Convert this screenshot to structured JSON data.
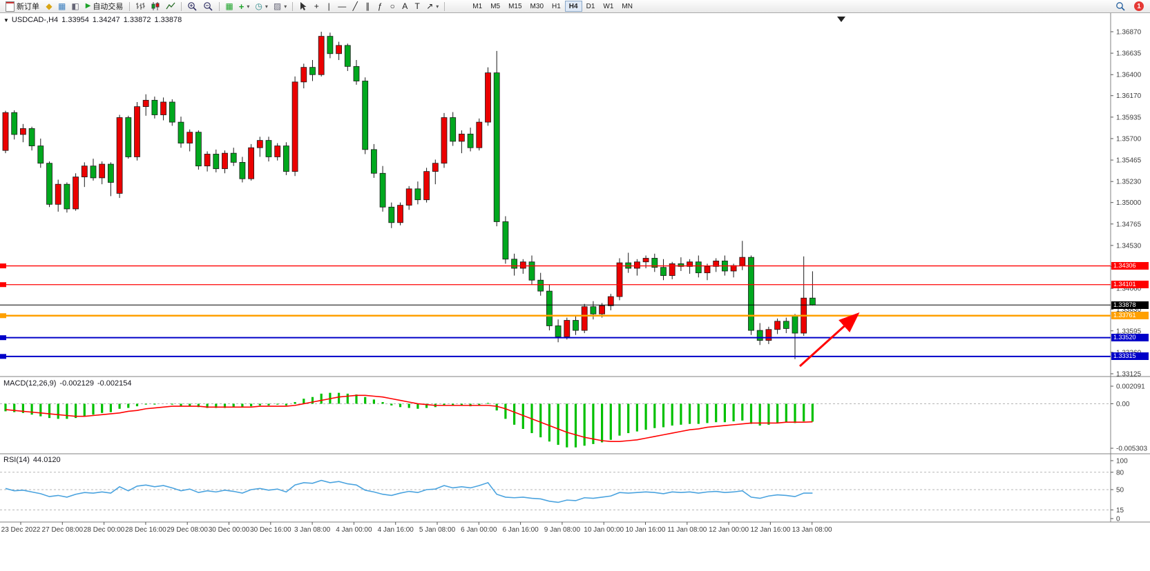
{
  "toolbar": {
    "new_order_label": "新订单",
    "auto_trading_label": "自动交易",
    "timeframes": [
      "M1",
      "M5",
      "M15",
      "M30",
      "H1",
      "H4",
      "D1",
      "W1",
      "MN"
    ],
    "active_timeframe": "H4",
    "notification_badge": "1"
  },
  "icons": {
    "collapse": "▼",
    "metaeditor": "◆",
    "terminal": "▦",
    "tester": "◧",
    "play": "▶",
    "tile": "▦",
    "indicators": "+",
    "periods": "◷",
    "templates": "▨",
    "crosshair": "+",
    "vertical_line": "|",
    "horizontal_line": "—",
    "trendline": "╱",
    "channel": "∥",
    "fibonacci": "ƒ",
    "ellipse": "○",
    "text": "A",
    "label": "T",
    "arrows": "↗",
    "dropdown": "▾"
  },
  "chart": {
    "symbol_period": "USDCAD-,H4",
    "open": "1.33954",
    "high": "1.34247",
    "low": "1.33872",
    "close": "1.33878"
  },
  "price_axis": {
    "top_price": 1.3687,
    "bottom_price": 1.33125,
    "labels": [
      "1.36870",
      "1.36635",
      "1.36400",
      "1.36170",
      "1.35935",
      "1.35700",
      "1.35465",
      "1.35230",
      "1.35000",
      "1.34765",
      "1.34530",
      "1.34300",
      "1.34060",
      "1.33830",
      "1.33595",
      "1.33360",
      "1.33125"
    ]
  },
  "line_levels": [
    {
      "name": "resistance-line-1",
      "price": "1.34306",
      "value": 1.34306,
      "color": "#FF0000",
      "width": 1.3,
      "anchor": true
    },
    {
      "name": "resistance-line-2",
      "price": "1.34101",
      "value": 1.34101,
      "color": "#FF0000",
      "width": 1.3,
      "anchor": true
    },
    {
      "name": "bid-price-line",
      "price": "1.33878",
      "value": 1.33878,
      "color": "#000000",
      "width": 1,
      "anchor": false
    },
    {
      "name": "orange-level-line",
      "price": "1.33761",
      "value": 1.33761,
      "color": "#FFA000",
      "width": 2.5,
      "anchor": true
    },
    {
      "name": "support-line-1",
      "price": "1.33520",
      "value": 1.3352,
      "color": "#0000C8",
      "width": 2,
      "anchor": true
    },
    {
      "name": "support-line-2",
      "price": "1.33315",
      "value": 1.33315,
      "color": "#0000C8",
      "width": 2,
      "anchor": true
    }
  ],
  "macd": {
    "label": "MACD(12,26,9)",
    "value": "-0.002129",
    "signal_value": "-0.002154",
    "axis_labels": [
      "0.002091",
      "0.00",
      "-0.005303"
    ],
    "axis_values": [
      0.002091,
      0,
      -0.005303
    ],
    "histogram_color": "#00C000",
    "signal_color": "#FF0000"
  },
  "rsi": {
    "label": "RSI(14)",
    "value": "44.0120",
    "axis_labels": [
      "100",
      "80",
      "50",
      "15",
      "0"
    ],
    "axis_values": [
      100,
      80,
      50,
      15,
      0
    ],
    "levels": [
      80,
      50,
      15
    ],
    "line_color": "#4AA3DF"
  },
  "time_axis": {
    "labels": [
      "23 Dec 2022",
      "27 Dec 08:00",
      "28 Dec 00:00",
      "28 Dec 16:00",
      "29 Dec 08:00",
      "30 Dec 00:00",
      "30 Dec 16:00",
      "3 Jan 08:00",
      "4 Jan 00:00",
      "4 Jan 16:00",
      "5 Jan 08:00",
      "6 Jan 00:00",
      "6 Jan 16:00",
      "9 Jan 08:00",
      "10 Jan 00:00",
      "10 Jan 16:00",
      "11 Jan 08:00",
      "12 Jan 00:00",
      "12 Jan 16:00",
      "13 Jan 08:00"
    ]
  },
  "annotation": {
    "arrow_color": "#FF0000"
  },
  "chart_data": {
    "type": "candlestick",
    "title": "USDCAD-,H4",
    "symbol": "USDCAD",
    "period": "H4",
    "bull_color": "#EB0000",
    "bear_color": "#00A81E",
    "ylim": [
      1.33125,
      1.3687
    ],
    "candles": [
      [
        1.3557,
        1.36005,
        1.3554,
        1.35985
      ],
      [
        1.35985,
        1.3601,
        1.3569,
        1.35745
      ],
      [
        1.35745,
        1.3586,
        1.3566,
        1.3581
      ],
      [
        1.3581,
        1.3583,
        1.3557,
        1.3562
      ],
      [
        1.3562,
        1.357,
        1.3538,
        1.3543
      ],
      [
        1.3543,
        1.3545,
        1.3495,
        1.3498
      ],
      [
        1.3498,
        1.3525,
        1.349,
        1.352
      ],
      [
        1.352,
        1.3522,
        1.3489,
        1.3493
      ],
      [
        1.3493,
        1.3532,
        1.3491,
        1.3528
      ],
      [
        1.3528,
        1.3544,
        1.3517,
        1.354
      ],
      [
        1.354,
        1.3548,
        1.3524,
        1.3527
      ],
      [
        1.3527,
        1.3545,
        1.352,
        1.3542
      ],
      [
        1.3542,
        1.3544,
        1.3507,
        1.3522
      ],
      [
        1.351,
        1.3596,
        1.3505,
        1.3593
      ],
      [
        1.3593,
        1.3595,
        1.3548,
        1.355
      ],
      [
        1.355,
        1.361,
        1.3546,
        1.3605
      ],
      [
        1.3605,
        1.36185,
        1.3595,
        1.3612
      ],
      [
        1.3612,
        1.3616,
        1.3592,
        1.3596
      ],
      [
        1.3596,
        1.3615,
        1.359,
        1.361
      ],
      [
        1.361,
        1.3613,
        1.3584,
        1.3588
      ],
      [
        1.3588,
        1.3594,
        1.356,
        1.3565
      ],
      [
        1.3565,
        1.358,
        1.3556,
        1.3577
      ],
      [
        1.3577,
        1.3579,
        1.3536,
        1.354
      ],
      [
        1.354,
        1.3556,
        1.3534,
        1.3553
      ],
      [
        1.3553,
        1.3558,
        1.3533,
        1.3537
      ],
      [
        1.3537,
        1.3557,
        1.3532,
        1.3554
      ],
      [
        1.3554,
        1.356,
        1.354,
        1.3544
      ],
      [
        1.3544,
        1.355,
        1.3522,
        1.3526
      ],
      [
        1.3526,
        1.3564,
        1.3524,
        1.356
      ],
      [
        1.356,
        1.3572,
        1.355,
        1.3568
      ],
      [
        1.3568,
        1.3572,
        1.3545,
        1.355
      ],
      [
        1.355,
        1.3565,
        1.3546,
        1.3562
      ],
      [
        1.3562,
        1.3566,
        1.353,
        1.3534
      ],
      [
        1.3534,
        1.3638,
        1.3529,
        1.3632
      ],
      [
        1.3632,
        1.3652,
        1.3625,
        1.3648
      ],
      [
        1.3648,
        1.3656,
        1.3633,
        1.364
      ],
      [
        1.364,
        1.3687,
        1.3638,
        1.3682
      ],
      [
        1.3682,
        1.3686,
        1.3658,
        1.3663
      ],
      [
        1.3663,
        1.3676,
        1.3656,
        1.3672
      ],
      [
        1.3672,
        1.3674,
        1.3644,
        1.3649
      ],
      [
        1.3649,
        1.3656,
        1.3629,
        1.3633
      ],
      [
        1.3633,
        1.3637,
        1.3553,
        1.3558
      ],
      [
        1.3558,
        1.3564,
        1.3527,
        1.3532
      ],
      [
        1.3532,
        1.354,
        1.349,
        1.3495
      ],
      [
        1.3495,
        1.35,
        1.3472,
        1.3478
      ],
      [
        1.3478,
        1.35,
        1.3475,
        1.3497
      ],
      [
        1.3497,
        1.3518,
        1.3492,
        1.3515
      ],
      [
        1.3515,
        1.3523,
        1.3498,
        1.3503
      ],
      [
        1.3503,
        1.3538,
        1.35,
        1.3534
      ],
      [
        1.3534,
        1.3547,
        1.352,
        1.3543
      ],
      [
        1.3543,
        1.3598,
        1.3538,
        1.3593
      ],
      [
        1.3593,
        1.3599,
        1.3562,
        1.3567
      ],
      [
        1.3567,
        1.3579,
        1.3554,
        1.3575
      ],
      [
        1.3575,
        1.3582,
        1.3556,
        1.356
      ],
      [
        1.356,
        1.3592,
        1.3557,
        1.3588
      ],
      [
        1.3588,
        1.3648,
        1.3584,
        1.3642
      ],
      [
        1.3642,
        1.3666,
        1.3474,
        1.3479
      ],
      [
        1.3479,
        1.3485,
        1.3433,
        1.3438
      ],
      [
        1.3438,
        1.3444,
        1.342,
        1.3428
      ],
      [
        1.3428,
        1.3438,
        1.3422,
        1.3435
      ],
      [
        1.3435,
        1.3442,
        1.341,
        1.3415
      ],
      [
        1.3415,
        1.3423,
        1.3398,
        1.3403
      ],
      [
        1.3403,
        1.341,
        1.336,
        1.3365
      ],
      [
        1.3365,
        1.3372,
        1.3347,
        1.3353
      ],
      [
        1.3353,
        1.3374,
        1.335,
        1.3371
      ],
      [
        1.3371,
        1.3377,
        1.3355,
        1.336
      ],
      [
        1.336,
        1.3389,
        1.3357,
        1.3386
      ],
      [
        1.3386,
        1.3392,
        1.3372,
        1.3378
      ],
      [
        1.3378,
        1.339,
        1.3374,
        1.3387
      ],
      [
        1.3387,
        1.34,
        1.3382,
        1.3397
      ],
      [
        1.3397,
        1.3439,
        1.3393,
        1.3434
      ],
      [
        1.3434,
        1.3445,
        1.3423,
        1.3428
      ],
      [
        1.3428,
        1.3438,
        1.342,
        1.3435
      ],
      [
        1.3435,
        1.3442,
        1.3428,
        1.3439
      ],
      [
        1.3439,
        1.3444,
        1.3424,
        1.3429
      ],
      [
        1.3429,
        1.3438,
        1.3415,
        1.342
      ],
      [
        1.342,
        1.3435,
        1.3416,
        1.3433
      ],
      [
        1.3433,
        1.344,
        1.3425,
        1.343
      ],
      [
        1.343,
        1.3438,
        1.3422,
        1.3435
      ],
      [
        1.3435,
        1.3442,
        1.3418,
        1.3423
      ],
      [
        1.3423,
        1.3433,
        1.3415,
        1.343
      ],
      [
        1.343,
        1.3439,
        1.3424,
        1.3436
      ],
      [
        1.3436,
        1.3442,
        1.342,
        1.3425
      ],
      [
        1.3425,
        1.3433,
        1.3418,
        1.3431
      ],
      [
        1.3431,
        1.3458,
        1.3426,
        1.344
      ],
      [
        1.344,
        1.3442,
        1.3355,
        1.336
      ],
      [
        1.336,
        1.3368,
        1.3344,
        1.3349
      ],
      [
        1.3349,
        1.3364,
        1.3345,
        1.3361
      ],
      [
        1.3361,
        1.3373,
        1.3356,
        1.337
      ],
      [
        1.337,
        1.3374,
        1.3357,
        1.3362
      ],
      [
        1.3376,
        1.3378,
        1.33285,
        1.3357
      ],
      [
        1.3357,
        1.3441,
        1.3354,
        1.33954
      ],
      [
        1.33954,
        1.34247,
        1.33872,
        1.33878
      ]
    ],
    "macd_histogram": [
      -0.0009,
      -0.001,
      -0.0011,
      -0.0013,
      -0.0015,
      -0.0017,
      -0.0018,
      -0.0018,
      -0.0017,
      -0.0015,
      -0.0013,
      -0.0011,
      -0.001,
      -0.0006,
      -0.0005,
      -0.0003,
      -0.0001,
      -0.0001,
      0.0,
      -0.0001,
      -0.0003,
      -0.0003,
      -0.0004,
      -0.0005,
      -0.0005,
      -0.0005,
      -0.0004,
      -0.0004,
      -0.0003,
      -0.0002,
      -0.0002,
      -0.0001,
      -0.0002,
      0.0002,
      0.0006,
      0.0008,
      0.0012,
      0.0013,
      0.0013,
      0.0012,
      0.0011,
      0.0008,
      0.0005,
      0.0002,
      -0.0002,
      -0.0004,
      -0.0005,
      -0.0006,
      -0.0005,
      -0.0004,
      -0.0002,
      -0.0002,
      -0.0002,
      -0.0003,
      -0.0002,
      0.0001,
      -0.0008,
      -0.0018,
      -0.0025,
      -0.003,
      -0.0035,
      -0.004,
      -0.0045,
      -0.0049,
      -0.0052,
      -0.0052,
      -0.005,
      -0.0048,
      -0.0046,
      -0.0043,
      -0.0038,
      -0.0035,
      -0.0033,
      -0.0031,
      -0.0029,
      -0.0028,
      -0.0026,
      -0.0025,
      -0.0024,
      -0.0024,
      -0.0023,
      -0.0022,
      -0.0022,
      -0.0021,
      -0.002,
      -0.0024,
      -0.0026,
      -0.0025,
      -0.0023,
      -0.0022,
      -0.0023,
      -0.0021,
      -0.002129
    ],
    "macd_signal": [
      -0.0007,
      -0.0008,
      -0.0009,
      -0.001,
      -0.0011,
      -0.0012,
      -0.0013,
      -0.0014,
      -0.0015,
      -0.0015,
      -0.0014,
      -0.0013,
      -0.0012,
      -0.0011,
      -0.0009,
      -0.0008,
      -0.0006,
      -0.0005,
      -0.0004,
      -0.0003,
      -0.0003,
      -0.0003,
      -0.0003,
      -0.0004,
      -0.0004,
      -0.0004,
      -0.0004,
      -0.0004,
      -0.0004,
      -0.0003,
      -0.0003,
      -0.0003,
      -0.0003,
      -0.0002,
      0.0,
      0.0002,
      0.0004,
      0.0006,
      0.0008,
      0.0009,
      0.001,
      0.001,
      0.0009,
      0.0008,
      0.0006,
      0.0004,
      0.0002,
      0.0,
      -0.0001,
      -0.0002,
      -0.0002,
      -0.0002,
      -0.0002,
      -0.0002,
      -0.0002,
      -0.0002,
      -0.0003,
      -0.0006,
      -0.001,
      -0.0014,
      -0.0018,
      -0.0022,
      -0.0026,
      -0.003,
      -0.0034,
      -0.0037,
      -0.004,
      -0.0042,
      -0.0044,
      -0.0045,
      -0.0045,
      -0.0044,
      -0.0043,
      -0.0041,
      -0.0039,
      -0.0037,
      -0.0035,
      -0.0033,
      -0.0031,
      -0.003,
      -0.0028,
      -0.0027,
      -0.0026,
      -0.0025,
      -0.0024,
      -0.0023,
      -0.0023,
      -0.0023,
      -0.0023,
      -0.0022,
      -0.0022,
      -0.0022,
      -0.002154
    ],
    "rsi_values": [
      52,
      48,
      49,
      46,
      43,
      38,
      40,
      37,
      42,
      45,
      44,
      46,
      44,
      55,
      48,
      56,
      58,
      55,
      57,
      53,
      48,
      51,
      45,
      48,
      46,
      49,
      47,
      44,
      50,
      52,
      49,
      51,
      46,
      58,
      62,
      61,
      66,
      62,
      64,
      60,
      58,
      49,
      46,
      42,
      40,
      44,
      47,
      45,
      50,
      51,
      57,
      53,
      55,
      53,
      57,
      62,
      42,
      37,
      36,
      37,
      35,
      34,
      30,
      28,
      32,
      31,
      36,
      35,
      37,
      39,
      45,
      44,
      45,
      46,
      45,
      43,
      46,
      45,
      46,
      44,
      46,
      47,
      45,
      46,
      48,
      37,
      35,
      39,
      41,
      40,
      38,
      44,
      44.012
    ]
  }
}
